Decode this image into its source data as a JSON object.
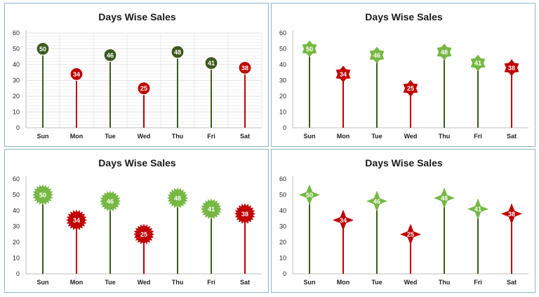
{
  "colors": {
    "high_dark": "#3d5a1e",
    "high_light": "#76b843",
    "low": "#c00000",
    "grid": "#d9d9d9",
    "axis": "#bfbfbf",
    "border": "#8db6c8"
  },
  "chart_data": [
    {
      "type": "lollipop",
      "marker": "circle",
      "gridlines": true,
      "title": "Days Wise Sales",
      "categories": [
        "Sun",
        "Mon",
        "Tue",
        "Wed",
        "Thu",
        "Fri",
        "Sat"
      ],
      "values": [
        50,
        34,
        46,
        25,
        48,
        41,
        38
      ],
      "yticks": [
        "0",
        "10",
        "20",
        "30",
        "40",
        "50",
        "60"
      ],
      "ylim": [
        0,
        60
      ]
    },
    {
      "type": "lollipop",
      "marker": "star",
      "gridlines": false,
      "title": "Days Wise Sales",
      "categories": [
        "Sun",
        "Mon",
        "Tue",
        "Wed",
        "Thu",
        "Fri",
        "Sat"
      ],
      "values": [
        50,
        34,
        46,
        25,
        48,
        41,
        38
      ],
      "yticks": [
        "0",
        "10",
        "20",
        "30",
        "40",
        "50",
        "60"
      ],
      "ylim": [
        0,
        60
      ]
    },
    {
      "type": "lollipop",
      "marker": "burst",
      "gridlines": false,
      "title": "Days Wise Sales",
      "categories": [
        "Sun",
        "Mon",
        "Tue",
        "Wed",
        "Thu",
        "Fri",
        "Sat"
      ],
      "values": [
        50,
        34,
        46,
        25,
        48,
        41,
        38
      ],
      "yticks": [
        "0",
        "10",
        "20",
        "30",
        "40",
        "50",
        "60"
      ],
      "ylim": [
        0,
        60
      ]
    },
    {
      "type": "lollipop",
      "marker": "four-point-star",
      "gridlines": false,
      "title": "Days Wise Sales",
      "categories": [
        "Sun",
        "Mon",
        "Tue",
        "Wed",
        "Thu",
        "Fri",
        "Sat"
      ],
      "values": [
        50,
        34,
        46,
        25,
        48,
        41,
        38
      ],
      "yticks": [
        "0",
        "10",
        "20",
        "30",
        "40",
        "50",
        "60"
      ],
      "ylim": [
        0,
        60
      ]
    }
  ]
}
